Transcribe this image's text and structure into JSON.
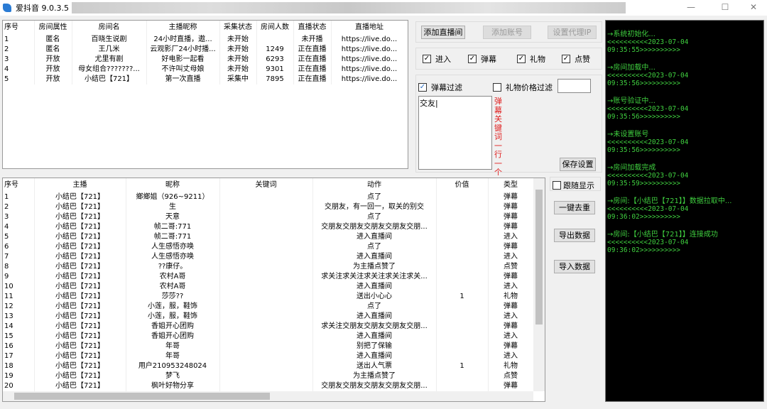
{
  "window": {
    "title": "爱抖音 9.0.3.5",
    "min": "—",
    "max": "☐",
    "close": "✕"
  },
  "rooms": {
    "headers": [
      "序号",
      "房间属性",
      "房间名",
      "主播昵称",
      "采集状态",
      "房间人数",
      "直播状态",
      "直播地址"
    ],
    "rows": [
      [
        "1",
        "匿名",
        "百晓生说剧",
        "24小时直播，遨...",
        "未开始",
        "",
        "未开播",
        "https://live.do..."
      ],
      [
        "2",
        "匿名",
        "王几米",
        "云观影厂24小时播...",
        "未开始",
        "1249",
        "正在直播",
        "https://live.do..."
      ],
      [
        "3",
        "开放",
        "尤里有剧",
        "好电影一起看",
        "未开始",
        "6293",
        "正在直播",
        "https://live.do..."
      ],
      [
        "4",
        "开放",
        "母女组合???????...",
        "不许叫丈母娘",
        "未开始",
        "9301",
        "正在直播",
        "https://live.do..."
      ],
      [
        "5",
        "开放",
        "小结巴【721】",
        "第一次直播",
        "采集中",
        "7895",
        "正在直播",
        "https://live.do..."
      ]
    ]
  },
  "toolbar": {
    "add_room": "添加直播间",
    "add_account": "添加账号",
    "set_proxy": "设置代理IP"
  },
  "types": [
    {
      "label": "进入",
      "checked": true
    },
    {
      "label": "弹幕",
      "checked": true
    },
    {
      "label": "礼物",
      "checked": true
    },
    {
      "label": "点赞",
      "checked": true
    }
  ],
  "filter": {
    "danmu_filter": "弹幕过滤",
    "danmu_checked": true,
    "gift_filter": "礼物价格过滤",
    "gift_checked": false,
    "gift_value": "",
    "keywords": "交友",
    "hint": "弹幕关键词一行一个",
    "save": "保存设置"
  },
  "events": {
    "headers": [
      "序号",
      "主播",
      "昵称",
      "关键词",
      "动作",
      "价值",
      "类型"
    ],
    "rows": [
      [
        "1",
        "小结巴【721】",
        "鄉鄉姐（926~9211）",
        "",
        "点了",
        "",
        "弹幕"
      ],
      [
        "2",
        "小结巴【721】",
        "生",
        "",
        "交朋友，有一回一，取关的别交",
        "",
        "弹幕"
      ],
      [
        "3",
        "小结巴【721】",
        "天意",
        "",
        "点了",
        "",
        "弹幕"
      ],
      [
        "4",
        "小结巴【721】",
        "帧二哥:771",
        "",
        "交朋友交朋友交朋友交朋友交朋...",
        "",
        "弹幕"
      ],
      [
        "5",
        "小结巴【721】",
        "帧二哥:771",
        "",
        "进入直播间",
        "",
        "进入"
      ],
      [
        "6",
        "小结巴【721】",
        "人生感悟亦唤",
        "",
        "点了",
        "",
        "弹幕"
      ],
      [
        "7",
        "小结巴【721】",
        "人生感悟亦唤",
        "",
        "进入直播间",
        "",
        "进入"
      ],
      [
        "8",
        "小结巴【721】",
        "??康仔。",
        "",
        "为主播点赞了",
        "",
        "点赞"
      ],
      [
        "9",
        "小结巴【721】",
        "农村A哥",
        "",
        "求关注求关注求关注求关注求关...",
        "",
        "弹幕"
      ],
      [
        "10",
        "小结巴【721】",
        "农村A哥",
        "",
        "进入直播间",
        "",
        "进入"
      ],
      [
        "11",
        "小结巴【721】",
        "莎莎??",
        "",
        "送出小心心",
        "1",
        "礼物"
      ],
      [
        "12",
        "小结巴【721】",
        "小莲，服，鞋饰",
        "",
        "点了",
        "",
        "弹幕"
      ],
      [
        "13",
        "小结巴【721】",
        "小莲，服，鞋饰",
        "",
        "进入直播间",
        "",
        "进入"
      ],
      [
        "14",
        "小结巴【721】",
        "香姐开心团购",
        "",
        "求关注交朋友交朋友交朋友交朋...",
        "",
        "弹幕"
      ],
      [
        "15",
        "小结巴【721】",
        "香姐开心团购",
        "",
        "进入直播间",
        "",
        "进入"
      ],
      [
        "16",
        "小结巴【721】",
        "年哥",
        "",
        "别把了保输",
        "",
        "弹幕"
      ],
      [
        "17",
        "小结巴【721】",
        "年哥",
        "",
        "进入直播间",
        "",
        "进入"
      ],
      [
        "18",
        "小结巴【721】",
        "用户210953248024",
        "",
        "送出人气票",
        "1",
        "礼物"
      ],
      [
        "19",
        "小结巴【721】",
        "梦飞",
        "",
        "为主播点赞了",
        "",
        "点赞"
      ],
      [
        "20",
        "小结巴【721】",
        "枫叶好物分享",
        "",
        "交朋友交朋友交朋友交朋友交朋...",
        "",
        "弹幕"
      ]
    ]
  },
  "side": {
    "follow": "跟随显示",
    "follow_checked": false,
    "dedupe": "一键去重",
    "export": "导出数据",
    "import": "导入数据"
  },
  "log": [
    {
      "msg": "→系统初始化...",
      "time": "<<<<<<<<<<2023-07-04 09:35:55>>>>>>>>>>"
    },
    {
      "msg": "→房间加载中...",
      "time": "<<<<<<<<<<2023-07-04 09:35:56>>>>>>>>>>"
    },
    {
      "msg": "→账号验证中...",
      "time": "<<<<<<<<<<2023-07-04 09:35:56>>>>>>>>>>"
    },
    {
      "msg": "→未设置账号",
      "time": "<<<<<<<<<<2023-07-04 09:35:56>>>>>>>>>>"
    },
    {
      "msg": "→房间加载完成",
      "time": "<<<<<<<<<<2023-07-04 09:35:59>>>>>>>>>>"
    },
    {
      "msg": "→房间:【小结巴【721】】数据拉取中...",
      "time": "<<<<<<<<<<2023-07-04 09:36:02>>>>>>>>>>"
    },
    {
      "msg": "→房间:【小结巴【721】】连接成功",
      "time": "<<<<<<<<<<2023-07-04 09:36:02>>>>>>>>>>"
    }
  ],
  "colors": {
    "log_bg": "#000000",
    "log_text": "#3fce3f",
    "hint": "#e02020"
  }
}
